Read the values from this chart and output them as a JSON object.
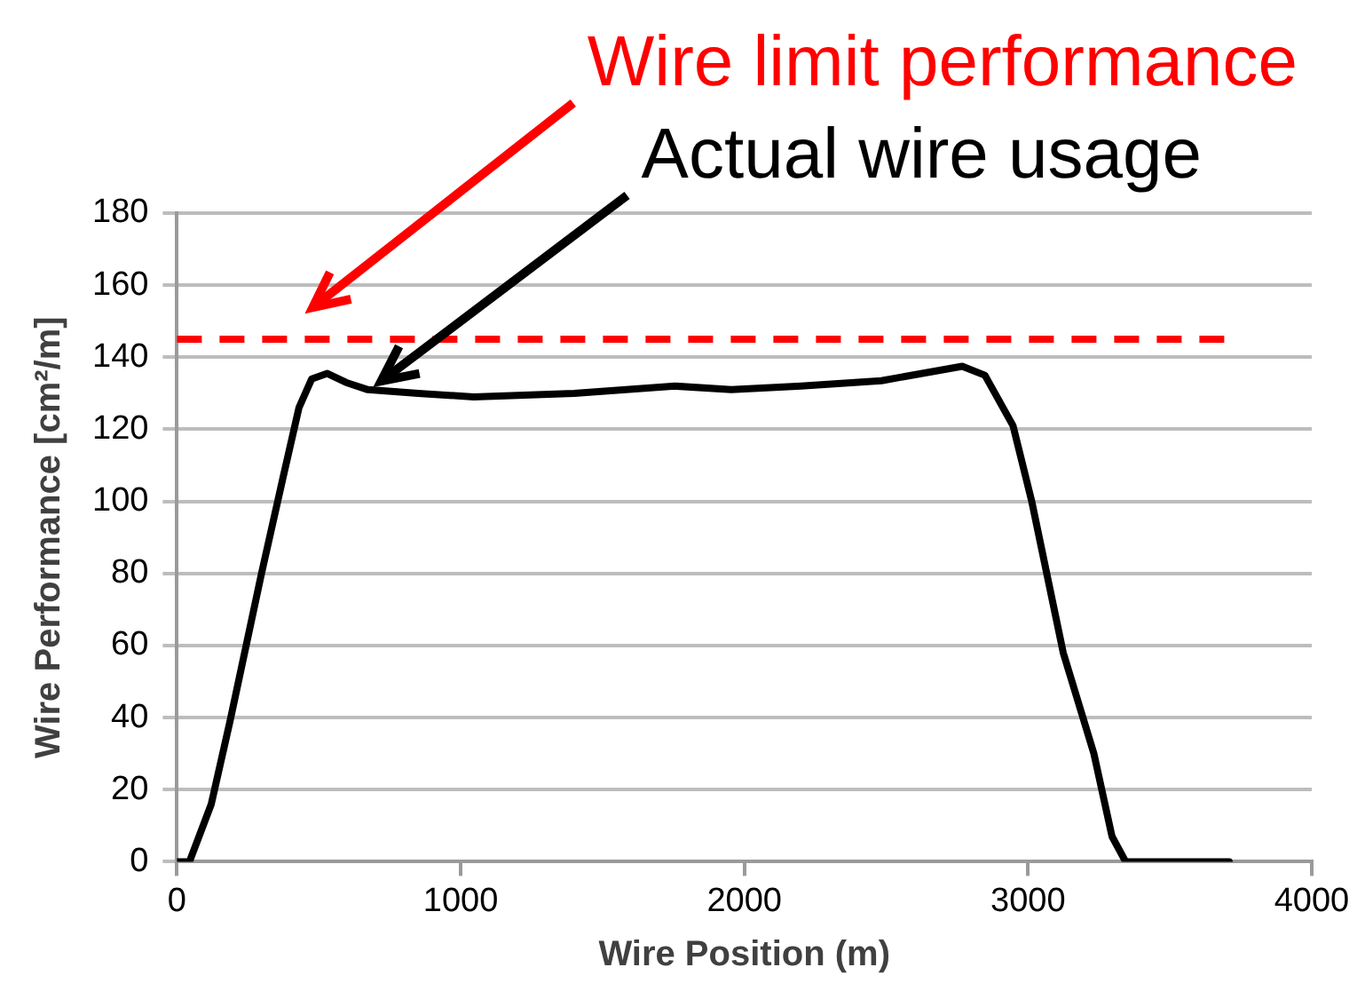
{
  "chart_data": {
    "type": "line",
    "xlabel": "Wire Position (m)",
    "ylabel": "Wire Performance [cm²/m]",
    "xlim": [
      0,
      4000
    ],
    "xticks": [
      0,
      1000,
      2000,
      3000,
      4000
    ],
    "ylim": [
      0,
      180
    ],
    "yticks": [
      0,
      20,
      40,
      60,
      80,
      100,
      120,
      140,
      160,
      180
    ],
    "grid": "y",
    "legend": false,
    "series": [
      {
        "color": "#000000",
        "x": [
          0,
          44,
          121,
          187,
          298,
          375,
          430,
          475,
          530,
          596,
          673,
          850,
          1046,
          1400,
          1755,
          1954,
          2200,
          2483,
          2768,
          2848,
          2947,
          3013,
          3124,
          3232,
          3296,
          3344,
          3709
        ],
        "values": [
          0,
          0,
          16,
          39,
          80,
          107,
          126,
          134,
          135.5,
          133,
          131,
          130,
          129,
          130,
          132,
          131,
          132,
          133.5,
          137.5,
          135,
          121,
          100,
          58,
          30,
          7,
          0,
          0
        ]
      }
    ],
    "ref_lines": [
      {
        "axis": "y",
        "value": 145,
        "color": "#ff0000",
        "line_style": "dashed"
      }
    ],
    "annotations": [
      "Wire limit performance",
      {
        "text": "Actual wire usage",
        "x": 680,
        "y": 131
      }
    ]
  }
}
